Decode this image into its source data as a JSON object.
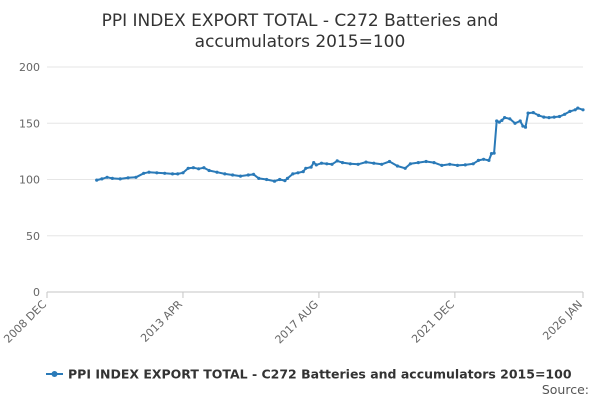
{
  "chart_data": {
    "type": "line",
    "title_lines": [
      "PPI INDEX EXPORT TOTAL - C272 Batteries and",
      "accumulators 2015=100"
    ],
    "xlabel": "",
    "ylabel": "",
    "x_ticks": [
      "2008 DEC",
      "2013 APR",
      "2017 AUG",
      "2021 DEC",
      "2026 JAN"
    ],
    "x_range": [
      "2008-12",
      "2026-01"
    ],
    "ylim": [
      0,
      200
    ],
    "y_ticks": [
      "0",
      "50",
      "100",
      "150",
      "200"
    ],
    "grid": true,
    "legend_position": "bottom",
    "series_color": "#2a7ab8",
    "series": [
      {
        "name": "PPI INDEX EXPORT TOTAL - C272 Batteries and accumulators 2015=100",
        "points": [
          [
            "2010-07",
            99.5
          ],
          [
            "2010-09",
            100.5
          ],
          [
            "2010-11",
            102
          ],
          [
            "2011-01",
            101
          ],
          [
            "2011-04",
            100.5
          ],
          [
            "2011-07",
            101.5
          ],
          [
            "2011-10",
            102
          ],
          [
            "2012-01",
            105.5
          ],
          [
            "2012-03",
            106.5
          ],
          [
            "2012-06",
            106
          ],
          [
            "2012-09",
            105.5
          ],
          [
            "2012-12",
            105
          ],
          [
            "2013-02",
            105
          ],
          [
            "2013-04",
            106
          ],
          [
            "2013-06",
            110
          ],
          [
            "2013-08",
            110.5
          ],
          [
            "2013-10",
            109.5
          ],
          [
            "2013-12",
            110.5
          ],
          [
            "2014-02",
            108
          ],
          [
            "2014-05",
            106.5
          ],
          [
            "2014-08",
            105
          ],
          [
            "2014-11",
            104
          ],
          [
            "2015-02",
            103
          ],
          [
            "2015-05",
            104
          ],
          [
            "2015-07",
            104.5
          ],
          [
            "2015-09",
            101
          ],
          [
            "2015-12",
            100
          ],
          [
            "2016-03",
            98.5
          ],
          [
            "2016-05",
            100
          ],
          [
            "2016-07",
            99
          ],
          [
            "2016-08",
            101
          ],
          [
            "2016-10",
            105
          ],
          [
            "2016-12",
            106
          ],
          [
            "2017-02",
            107
          ],
          [
            "2017-03",
            110
          ],
          [
            "2017-05",
            111
          ],
          [
            "2017-06",
            115
          ],
          [
            "2017-07",
            113
          ],
          [
            "2017-09",
            114.5
          ],
          [
            "2017-11",
            114
          ],
          [
            "2018-01",
            113.5
          ],
          [
            "2018-03",
            116.5
          ],
          [
            "2018-05",
            115
          ],
          [
            "2018-08",
            114
          ],
          [
            "2018-11",
            113.5
          ],
          [
            "2019-02",
            115.5
          ],
          [
            "2019-05",
            114.5
          ],
          [
            "2019-08",
            113.5
          ],
          [
            "2019-11",
            116
          ],
          [
            "2020-02",
            112
          ],
          [
            "2020-05",
            110
          ],
          [
            "2020-07",
            114
          ],
          [
            "2020-10",
            115
          ],
          [
            "2021-01",
            116
          ],
          [
            "2021-04",
            115
          ],
          [
            "2021-07",
            112.5
          ],
          [
            "2021-10",
            113.5
          ],
          [
            "2022-01",
            112.5
          ],
          [
            "2022-04",
            113
          ],
          [
            "2022-07",
            114
          ],
          [
            "2022-09",
            117
          ],
          [
            "2022-11",
            118
          ],
          [
            "2023-01",
            117
          ],
          [
            "2023-02",
            123
          ],
          [
            "2023-03",
            123.5
          ],
          [
            "2023-04",
            152
          ],
          [
            "2023-05",
            151
          ],
          [
            "2023-06",
            152.5
          ],
          [
            "2023-07",
            155
          ],
          [
            "2023-09",
            154
          ],
          [
            "2023-11",
            150
          ],
          [
            "2024-01",
            152
          ],
          [
            "2024-02",
            147.5
          ],
          [
            "2024-03",
            146.5
          ],
          [
            "2024-04",
            159
          ],
          [
            "2024-06",
            159.5
          ],
          [
            "2024-08",
            157
          ],
          [
            "2024-10",
            155.5
          ],
          [
            "2024-12",
            155
          ],
          [
            "2025-02",
            155.5
          ],
          [
            "2025-04",
            156
          ],
          [
            "2025-06",
            158
          ],
          [
            "2025-08",
            160.5
          ],
          [
            "2025-10",
            162
          ],
          [
            "2025-11",
            163.5
          ],
          [
            "2026-01",
            162
          ]
        ]
      }
    ]
  },
  "source_label": "Source:"
}
